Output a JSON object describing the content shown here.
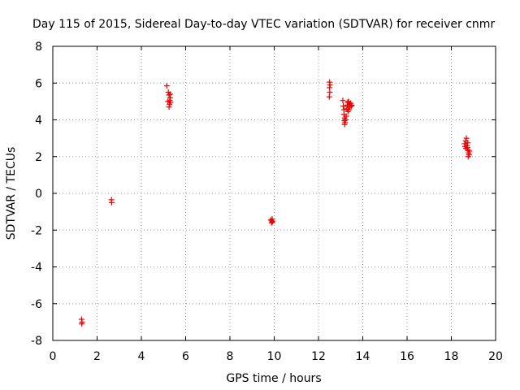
{
  "chart_data": {
    "type": "scatter",
    "title": "Day 115 of 2015, Sidereal Day-to-day VTEC variation (SDTVAR) for receiver cnmr",
    "xlabel": "GPS time / hours",
    "ylabel": "SDTVAR / TECUs",
    "xlim": [
      0,
      20
    ],
    "ylim": [
      -8,
      8
    ],
    "xticks": [
      "0",
      "2",
      "4",
      "6",
      "8",
      "10",
      "12",
      "14",
      "16",
      "18",
      "20"
    ],
    "yticks": [
      "-8",
      "-6",
      "-4",
      "-2",
      "0",
      "2",
      "4",
      "6",
      "8"
    ],
    "grid": true,
    "marker": "+",
    "series_color": "#ee0000",
    "series": [
      {
        "name": "SDTVAR",
        "points": [
          [
            1.3,
            -6.85
          ],
          [
            1.32,
            -7.0
          ],
          [
            1.31,
            -7.1
          ],
          [
            2.65,
            -0.35
          ],
          [
            2.66,
            -0.5
          ],
          [
            5.15,
            5.85
          ],
          [
            5.22,
            5.5
          ],
          [
            5.25,
            5.35
          ],
          [
            5.3,
            5.2
          ],
          [
            5.28,
            5.05
          ],
          [
            5.2,
            5.0
          ],
          [
            5.32,
            4.95
          ],
          [
            5.27,
            4.85
          ],
          [
            5.25,
            4.7
          ],
          [
            5.3,
            5.4
          ],
          [
            9.85,
            -1.45
          ],
          [
            9.9,
            -1.5
          ],
          [
            9.92,
            -1.55
          ],
          [
            9.88,
            -1.6
          ],
          [
            9.91,
            -1.4
          ],
          [
            12.5,
            6.05
          ],
          [
            12.52,
            5.9
          ],
          [
            12.5,
            5.75
          ],
          [
            12.51,
            5.5
          ],
          [
            12.49,
            5.25
          ],
          [
            13.1,
            5.05
          ],
          [
            13.12,
            4.75
          ],
          [
            13.15,
            4.55
          ],
          [
            13.15,
            4.3
          ],
          [
            13.18,
            4.1
          ],
          [
            13.17,
            3.95
          ],
          [
            13.2,
            3.85
          ],
          [
            13.18,
            3.75
          ],
          [
            13.22,
            4.0
          ],
          [
            13.25,
            4.2
          ],
          [
            13.28,
            4.6
          ],
          [
            13.3,
            4.8
          ],
          [
            13.32,
            4.95
          ],
          [
            13.35,
            4.7
          ],
          [
            13.38,
            4.55
          ],
          [
            13.4,
            4.85
          ],
          [
            13.42,
            4.7
          ],
          [
            13.45,
            4.9
          ],
          [
            13.48,
            4.75
          ],
          [
            13.5,
            4.8
          ],
          [
            13.33,
            4.45
          ],
          [
            13.36,
            5.0
          ],
          [
            18.6,
            2.7
          ],
          [
            18.62,
            2.55
          ],
          [
            18.65,
            2.85
          ],
          [
            18.68,
            3.0
          ],
          [
            18.7,
            2.6
          ],
          [
            18.72,
            2.5
          ],
          [
            18.75,
            2.35
          ],
          [
            18.78,
            2.2
          ],
          [
            18.8,
            2.1
          ],
          [
            18.82,
            2.3
          ],
          [
            18.76,
            2.0
          ],
          [
            18.66,
            2.45
          ],
          [
            18.74,
            2.75
          ]
        ]
      }
    ]
  }
}
